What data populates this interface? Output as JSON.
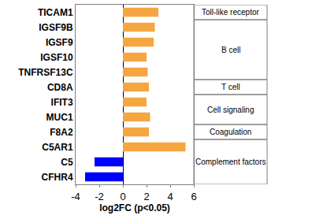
{
  "chart_data": {
    "type": "bar",
    "orientation": "horizontal",
    "x_label": "log2FC (p<0.05)",
    "categories": [
      "TICAM1",
      "IGSF9B",
      "IGSF9",
      "IGSF10",
      "TNFRSF13C",
      "CD8A",
      "IFIT3",
      "MUC1",
      "F8A2",
      "C5AR1",
      "C5",
      "CFHR4"
    ],
    "values": [
      3.0,
      2.7,
      2.6,
      2.0,
      2.1,
      2.2,
      2.0,
      2.3,
      2.2,
      5.3,
      -2.4,
      -3.2
    ],
    "colors": [
      "#f5a640",
      "#f5a640",
      "#f5a640",
      "#f5a640",
      "#f5a640",
      "#f5a640",
      "#f5a640",
      "#f5a640",
      "#f5a640",
      "#f5a640",
      "#0000ff",
      "#0000ff"
    ],
    "xlim": [
      -4,
      6
    ],
    "xticks": [
      -4,
      -2,
      0,
      2,
      4,
      6
    ],
    "grid": false,
    "annotations": [
      {
        "text": "Toll-like receptor",
        "from": "TICAM1",
        "to": "TICAM1"
      },
      {
        "text": "B cell",
        "from": "IGSF9B",
        "to": "TNFRSF13C"
      },
      {
        "text": "T cell",
        "from": "CD8A",
        "to": "CD8A"
      },
      {
        "text": "Cell signaling",
        "from": "IFIT3",
        "to": "MUC1"
      },
      {
        "text": "Coagulation",
        "from": "F8A2",
        "to": "F8A2"
      },
      {
        "text": "Complement factors",
        "from": "C5AR1",
        "to": "CFHR4"
      }
    ]
  }
}
